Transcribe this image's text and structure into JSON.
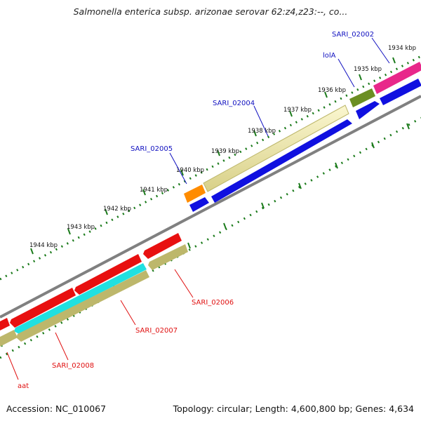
{
  "title": "Salmonella enterica subsp. arizonae serovar 62:z4,z23:--, co...",
  "footer": {
    "accession": "Accession: NC_010067",
    "summary": "Topology: circular; Length: 4,600,800 bp; Genes: 4,634"
  },
  "ticks": [
    "1934 kbp",
    "1935 kbp",
    "1936 kbp",
    "1937 kbp",
    "1938 kbp",
    "1939 kbp",
    "1940 kbp",
    "1941 kbp",
    "1942 kbp",
    "1943 kbp",
    "1944 kbp"
  ],
  "forward_genes": [
    "SARI_02002",
    "lolA",
    "SARI_02004",
    "SARI_02005"
  ],
  "reverse_genes": [
    "SARI_02006",
    "SARI_02007",
    "SARI_02008",
    "aat"
  ],
  "colors": {
    "forward_label": "#1010c0",
    "reverse_label": "#e01010",
    "tick": "#1a7a1a",
    "backbone": "#808080",
    "magenta": "#e8288a",
    "olive": "#6b8e23",
    "khaki": "#e8e2a0",
    "orange": "#ff8c00",
    "blue": "#1010e0",
    "red": "#e81010",
    "cyan": "#20e0e0",
    "tan": "#bdb76b"
  }
}
